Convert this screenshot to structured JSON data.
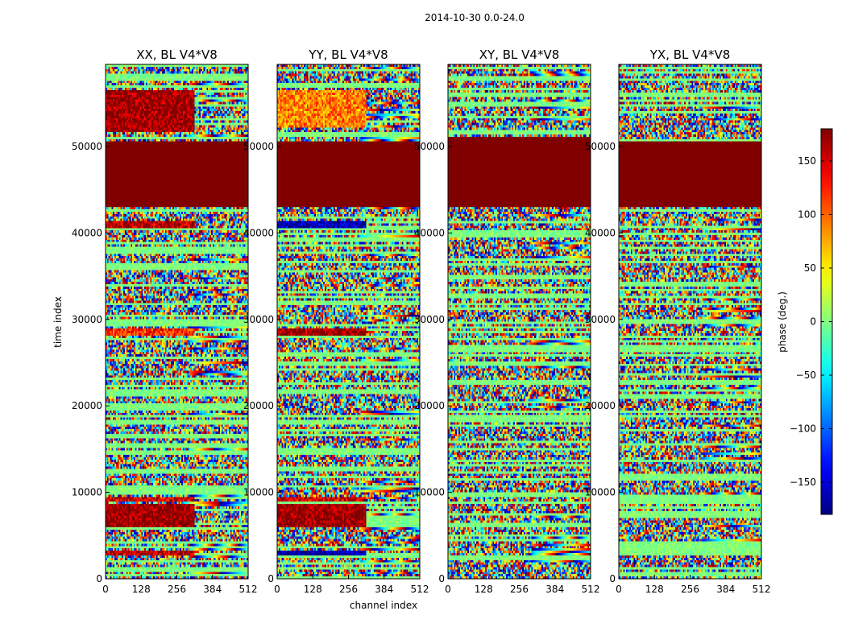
{
  "figure": {
    "suptitle": "2014-10-30 0.0-24.0"
  },
  "chart_data": {
    "type": "heatmap",
    "suptitle": "2014-10-30 0.0-24.0",
    "xlabel": "channel index",
    "ylabel": "time index",
    "xlim": [
      0,
      512
    ],
    "ylim": [
      0,
      59500
    ],
    "xticks": [
      0,
      128,
      256,
      384,
      512
    ],
    "yticks": [
      0,
      10000,
      20000,
      30000,
      40000,
      50000
    ],
    "colormap": "jet",
    "colorbar": {
      "label": "phase (deg.)",
      "range": [
        -180,
        180
      ],
      "ticks": [
        -150,
        -100,
        -50,
        0,
        50,
        100,
        150
      ]
    },
    "panels": [
      {
        "title": "XX, BL V4*V8",
        "saturated_band": [
          43000,
          50600
        ],
        "hot_bands": [
          [
            51700,
            56500,
            170
          ],
          [
            40600,
            41300,
            160
          ],
          [
            28000,
            29000,
            120
          ],
          [
            8900,
            9400,
            150
          ],
          [
            6000,
            8600,
            175
          ],
          [
            2600,
            3300,
            160
          ]
        ]
      },
      {
        "title": "YY, BL V4*V8",
        "saturated_band": [
          43000,
          50600
        ],
        "hot_bands": [
          [
            52300,
            56500,
            90
          ],
          [
            40600,
            41300,
            -160
          ],
          [
            28000,
            29000,
            170
          ],
          [
            8900,
            9400,
            150
          ],
          [
            6000,
            8600,
            175
          ],
          [
            2600,
            3300,
            -170
          ]
        ]
      },
      {
        "title": "XY, BL V4*V8",
        "saturated_band": [
          43000,
          51000
        ],
        "hot_bands": []
      },
      {
        "title": "YX, BL V4*V8",
        "saturated_band": [
          43000,
          50600
        ],
        "hot_bands": []
      }
    ]
  },
  "colors": {
    "saturated": "#800000",
    "neutral_band": "#80ff80"
  }
}
